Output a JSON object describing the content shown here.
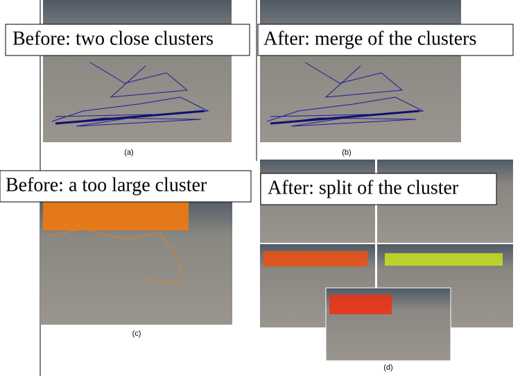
{
  "panels": [
    {
      "label": "Before: two close clusters",
      "caption": "(a)"
    },
    {
      "label": "After: merge of the clusters",
      "caption": "(b)"
    },
    {
      "label": "Before: a too large cluster",
      "caption": "(c)"
    },
    {
      "label": "After: split of the cluster",
      "caption": "(d)"
    }
  ]
}
